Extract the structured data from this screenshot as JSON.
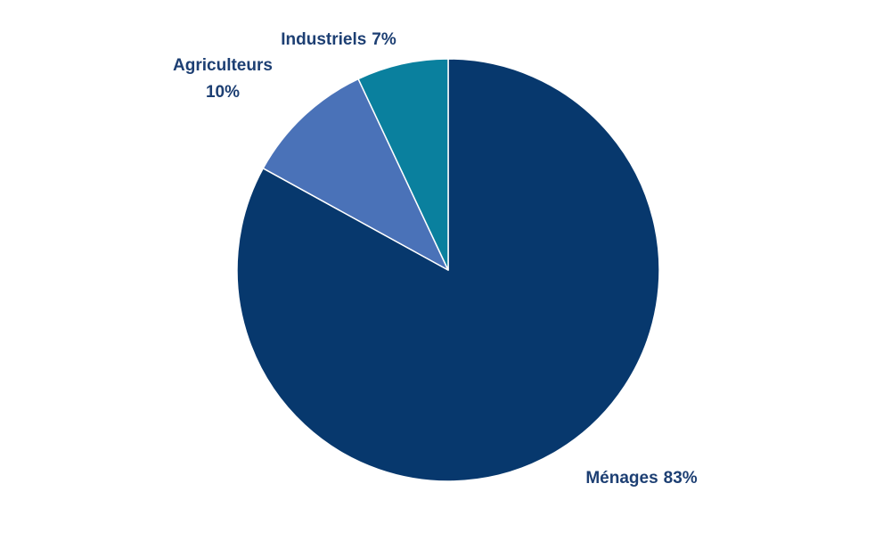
{
  "chart_data": {
    "type": "pie",
    "categories": [
      "Ménages",
      "Agriculteurs",
      "Industriels"
    ],
    "values": [
      83,
      10,
      7
    ],
    "value_labels": [
      "83%",
      "10%",
      "7%"
    ],
    "colors": [
      "#07386d",
      "#4a72b8",
      "#0a809e"
    ]
  }
}
